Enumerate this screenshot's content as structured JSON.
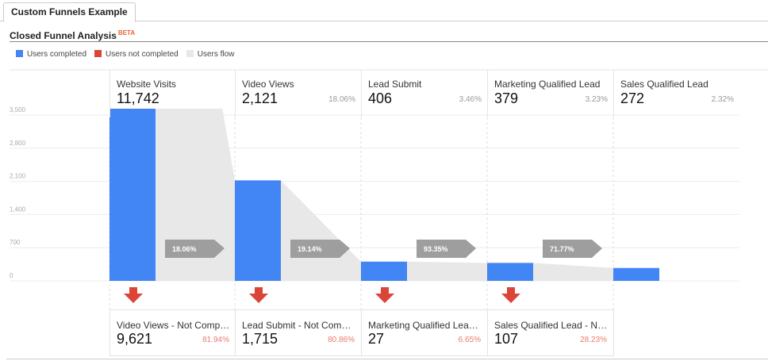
{
  "tab": {
    "label": "Custom Funnels Example"
  },
  "title": "Closed Funnel Analysis",
  "badge": "BETA",
  "legend": [
    {
      "label": "Users completed",
      "color": "#4285f4"
    },
    {
      "label": "Users not completed",
      "color": "#db4437"
    },
    {
      "label": "Users flow",
      "color": "#e8e8e8"
    }
  ],
  "chart_data": {
    "type": "bar",
    "yticks": [
      "0",
      "700",
      "1,400",
      "2,100",
      "2,800",
      "3,500"
    ],
    "ylim": [
      0,
      3500
    ],
    "categories": [
      "Website Visits",
      "Video Views",
      "Lead Submit",
      "Marketing Qualified Lead",
      "Sales Qualified Lead"
    ],
    "values": [
      11742,
      2121,
      406,
      379,
      272
    ],
    "value_labels": [
      "11,742",
      "2,121",
      "406",
      "379",
      "272"
    ],
    "percent_of_start": [
      "",
      "18.06%",
      "3.46%",
      "3.23%",
      "2.32%"
    ],
    "conversion": [
      "18.06%",
      "19.14%",
      "93.35%",
      "71.77%"
    ],
    "not_completed": [
      {
        "label": "Video Views - Not Complet...",
        "value": "9,621",
        "percent": "81.94%"
      },
      {
        "label": "Lead Submit - Not Comple...",
        "value": "1,715",
        "percent": "80.86%"
      },
      {
        "label": "Marketing Qualified Lead -...",
        "value": "27",
        "percent": "6.65%"
      },
      {
        "label": "Sales Qualified Lead - Not ...",
        "value": "107",
        "percent": "28.23%"
      }
    ]
  }
}
